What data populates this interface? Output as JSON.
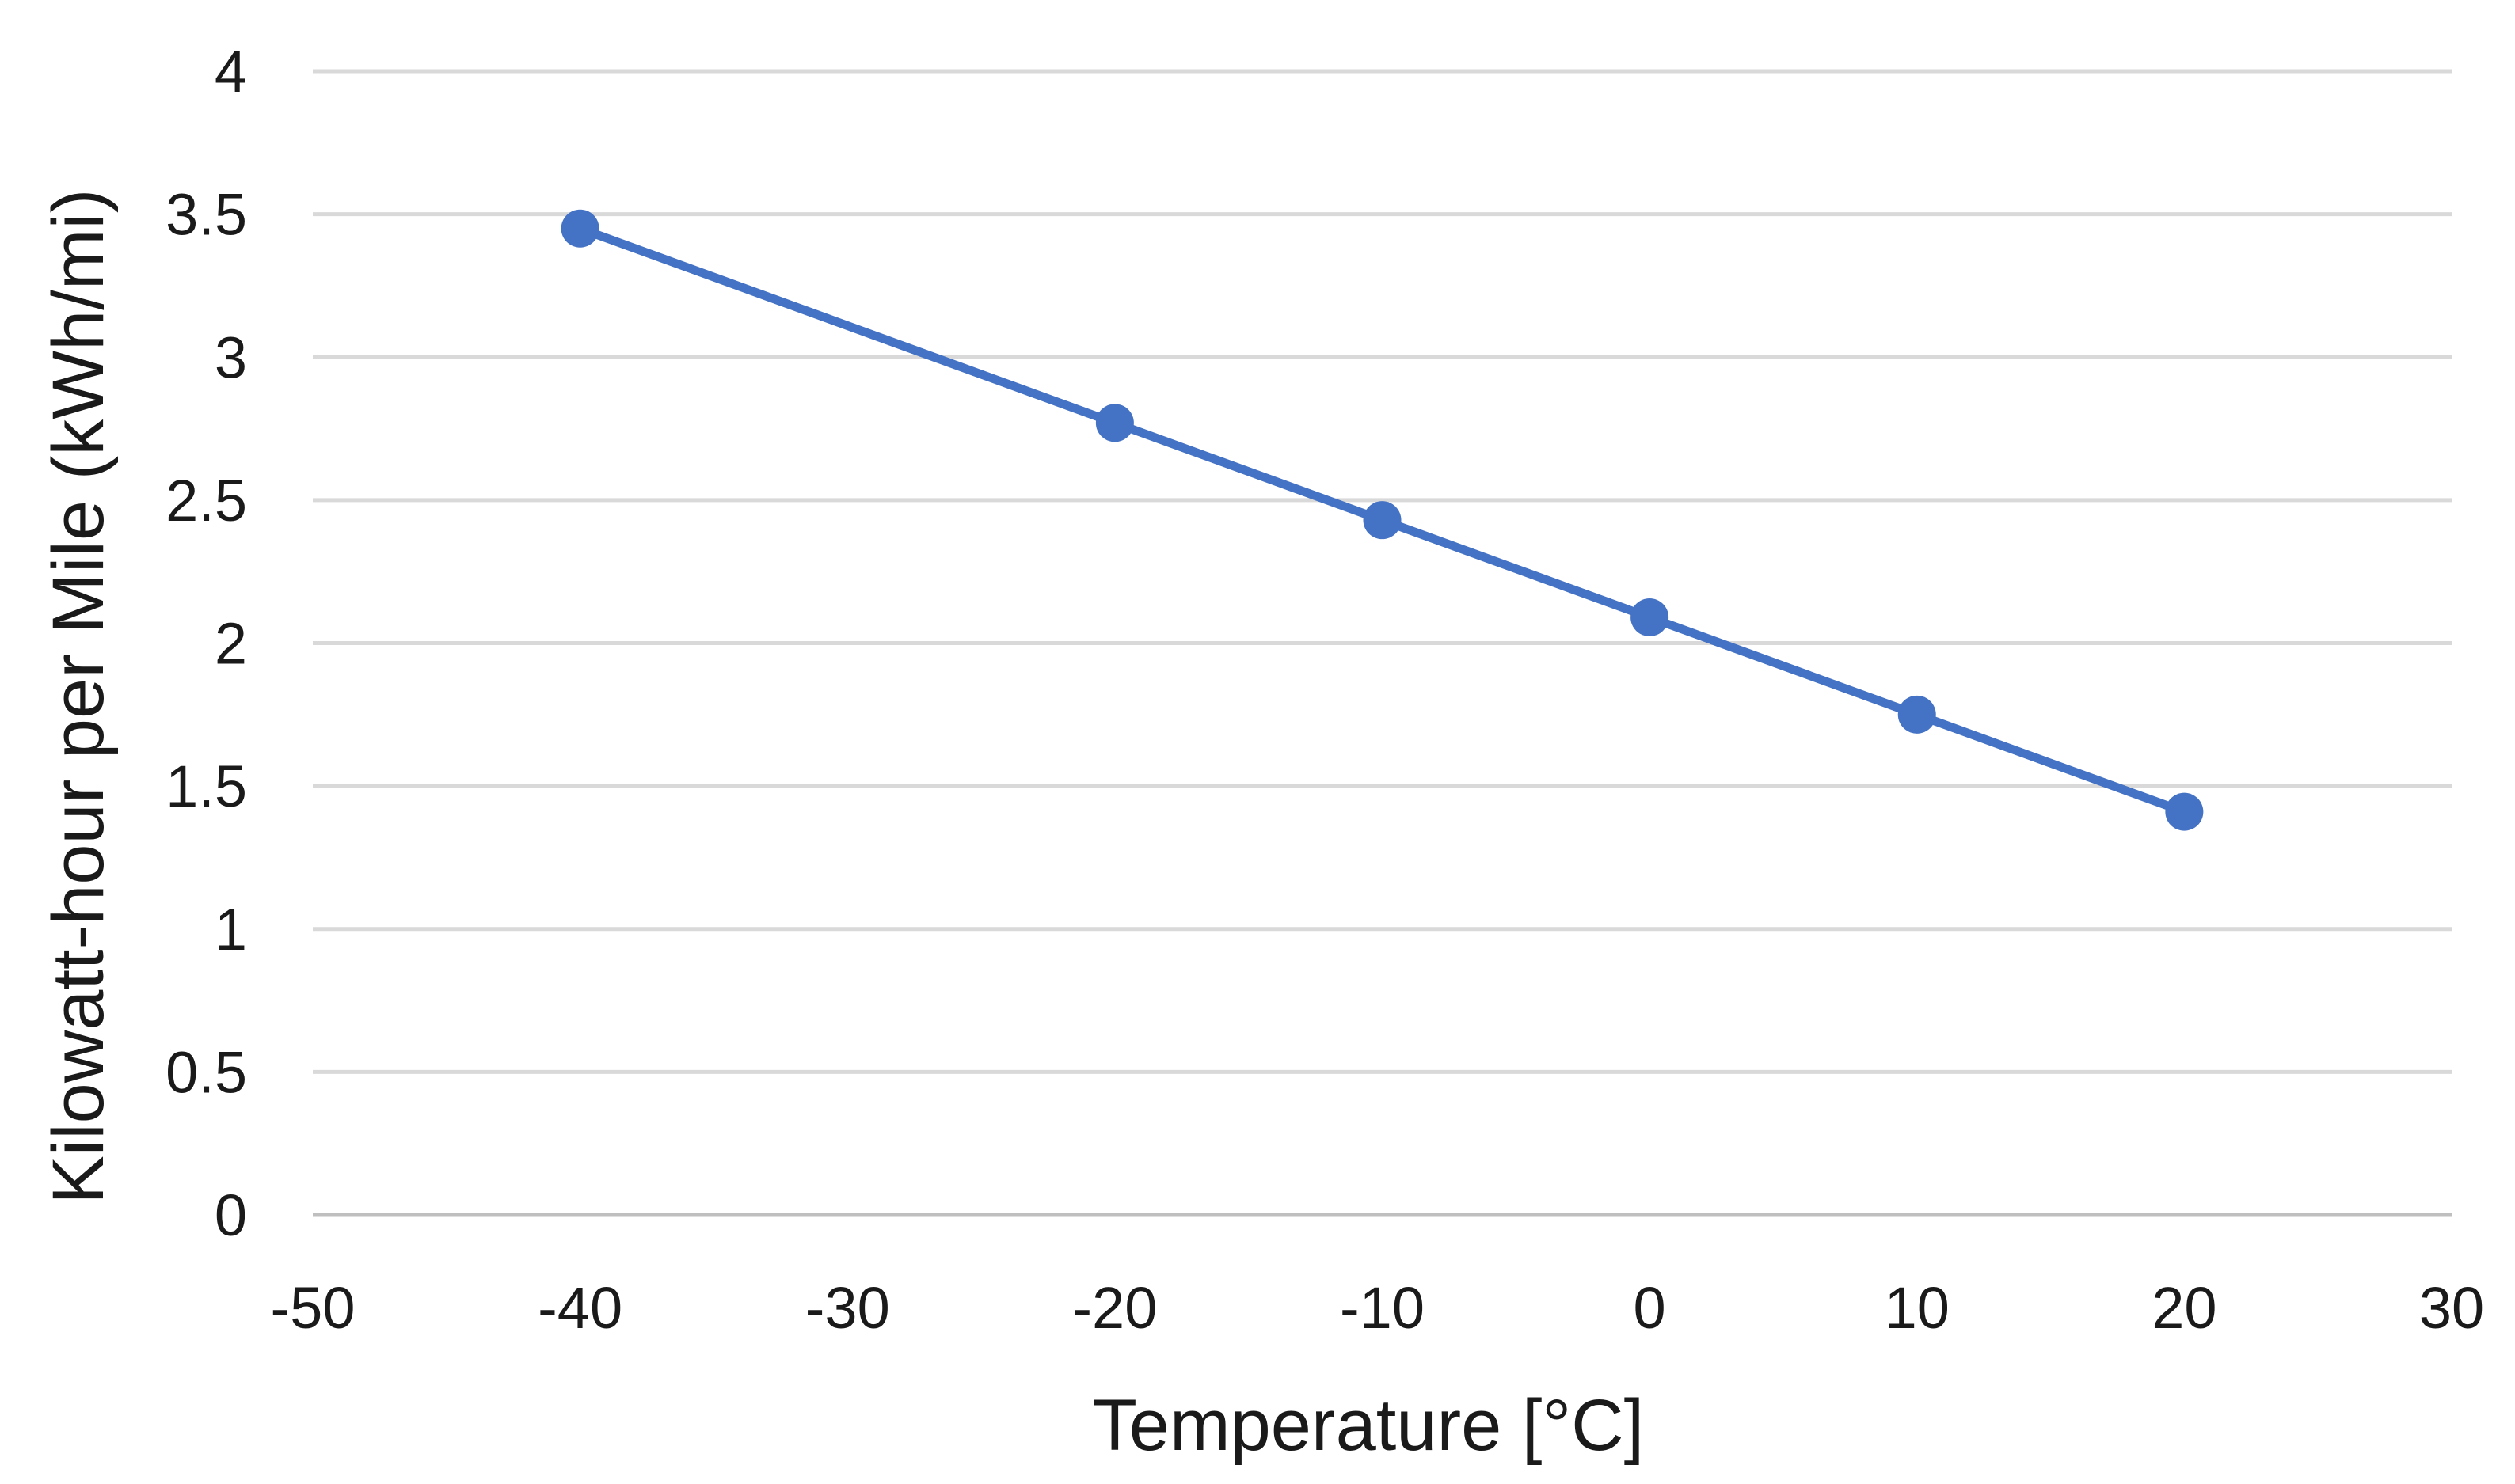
{
  "chart_data": {
    "type": "line",
    "title": "",
    "xlabel": "Temperature [°C]",
    "ylabel": "Kilowatt-hour  per Mile (kWh/mi)",
    "xlim": [
      -50,
      30
    ],
    "ylim": [
      0,
      4
    ],
    "xticks": [
      -50,
      -40,
      -30,
      -20,
      -10,
      0,
      10,
      20,
      30
    ],
    "yticks": [
      0,
      0.5,
      1,
      1.5,
      2,
      2.5,
      3,
      3.5,
      4
    ],
    "xtick_labels": [
      "-50",
      "-40",
      "-30",
      "-20",
      "-10",
      "0",
      "10",
      "20",
      "30"
    ],
    "ytick_labels": [
      "0",
      "0.5",
      "1",
      "1.5",
      "2",
      "2.5",
      "3",
      "3.5",
      "4"
    ],
    "grid": true,
    "legend": "none",
    "series": [
      {
        "name": "kWh/mi",
        "color": "#4472c4",
        "x": [
          -40,
          -20,
          -10,
          0,
          10,
          20
        ],
        "y": [
          3.45,
          2.77,
          2.43,
          2.09,
          1.75,
          1.41
        ]
      }
    ]
  }
}
